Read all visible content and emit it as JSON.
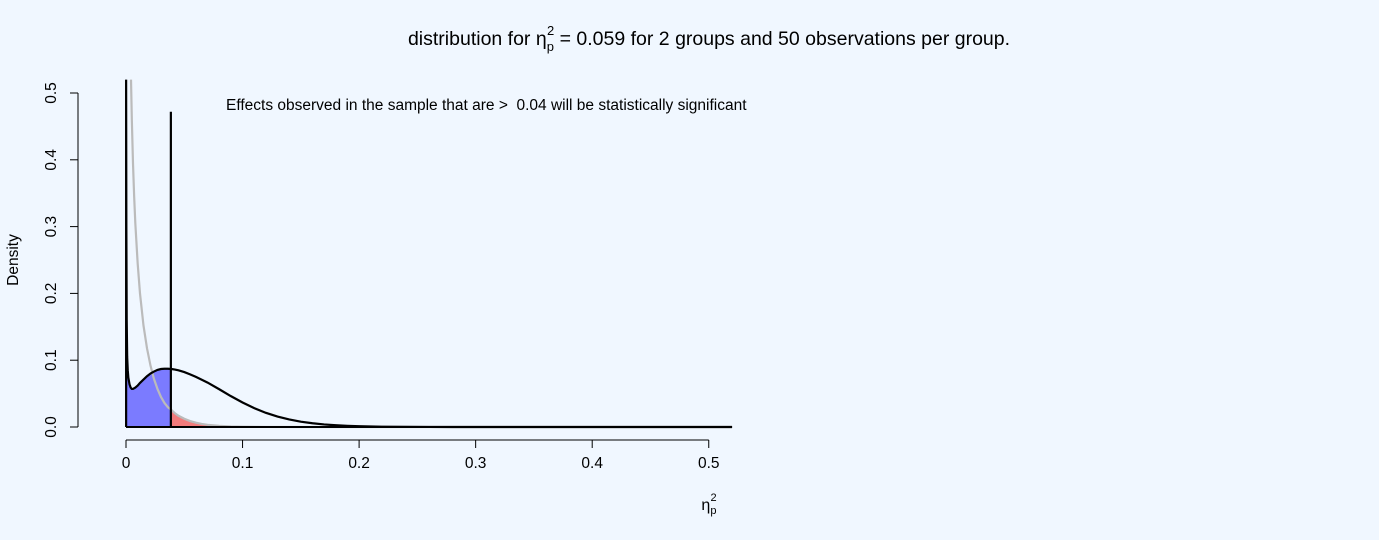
{
  "chart_data": {
    "type": "area",
    "title": {
      "prefix": "distribution for ",
      "symbol": "η",
      "superscript": "2",
      "subscript": "p",
      "suffix": " = 0.059 for 2 groups and 50 observations per group."
    },
    "xlabel": {
      "symbol": "η",
      "superscript": "2",
      "subscript": "p"
    },
    "ylabel": "Density",
    "xlim": [
      0,
      0.52
    ],
    "ylim": [
      0,
      0.52
    ],
    "x_ticks": [
      "0",
      "0.1",
      "0.2",
      "0.3",
      "0.4",
      "0.5"
    ],
    "y_ticks": [
      "0.0",
      "0.1",
      "0.2",
      "0.3",
      "0.4",
      "0.5"
    ],
    "grid": false,
    "critical_value": 0.0385,
    "critical_line_top": 0.472,
    "annotation": "Effects observed in the sample that are >  0.04 will be statistically significant",
    "series": [
      {
        "name": "",
        "role": "alternative",
        "color": "#000000",
        "x": [
          0.0001,
          0.0003,
          0.0006,
          0.001,
          0.0015,
          0.002,
          0.003,
          0.004,
          0.005,
          0.006,
          0.008,
          0.01,
          0.012,
          0.015,
          0.018,
          0.021,
          0.024,
          0.027,
          0.03,
          0.033,
          0.036,
          0.039,
          0.042,
          0.045,
          0.05,
          0.055,
          0.06,
          0.07,
          0.08,
          0.09,
          0.1,
          0.11,
          0.12,
          0.13,
          0.14,
          0.15,
          0.16,
          0.17,
          0.18,
          0.19,
          0.2,
          0.22,
          0.24,
          0.26,
          0.28,
          0.3,
          0.35,
          0.4,
          0.45,
          0.5,
          0.52
        ],
        "y": [
          0.52,
          0.3,
          0.16,
          0.105,
          0.085,
          0.074,
          0.064,
          0.059,
          0.057,
          0.057,
          0.059,
          0.062,
          0.066,
          0.071,
          0.076,
          0.08,
          0.083,
          0.0855,
          0.0868,
          0.0872,
          0.0872,
          0.0868,
          0.086,
          0.0848,
          0.0822,
          0.0788,
          0.075,
          0.0665,
          0.0565,
          0.0462,
          0.0367,
          0.0282,
          0.0212,
          0.0156,
          0.0113,
          0.008,
          0.0056,
          0.0038,
          0.0026,
          0.0017,
          0.0011,
          0.00045,
          0.00018,
          7e-05,
          3e-05,
          1e-05,
          0,
          0,
          0,
          0,
          0
        ]
      },
      {
        "name": "",
        "role": "null",
        "color": "#bbbbbb",
        "x": [
          0.0043,
          0.005,
          0.006,
          0.007,
          0.008,
          0.01,
          0.012,
          0.015,
          0.018,
          0.021,
          0.024,
          0.027,
          0.03,
          0.033,
          0.036,
          0.0385,
          0.042,
          0.045,
          0.05,
          0.055,
          0.06,
          0.065,
          0.07,
          0.08,
          0.09,
          0.1,
          0.12,
          0.15,
          0.2,
          0.3,
          0.52
        ],
        "y": [
          0.52,
          0.46,
          0.395,
          0.345,
          0.305,
          0.245,
          0.2,
          0.152,
          0.118,
          0.092,
          0.072,
          0.057,
          0.045,
          0.036,
          0.0295,
          0.0262,
          0.0205,
          0.0168,
          0.0123,
          0.0089,
          0.0064,
          0.0046,
          0.0033,
          0.0017,
          0.00085,
          0.00042,
          0.0001,
          1e-05,
          0,
          0,
          0
        ]
      }
    ],
    "fills": [
      {
        "role": "power-miss",
        "color": "#7b7bff",
        "under": "alternative",
        "from": 0,
        "to": 0.0385
      },
      {
        "role": "type-i-error",
        "color": "#f27b7b",
        "under": "null",
        "from": 0.0385,
        "to": 0.52
      }
    ]
  }
}
